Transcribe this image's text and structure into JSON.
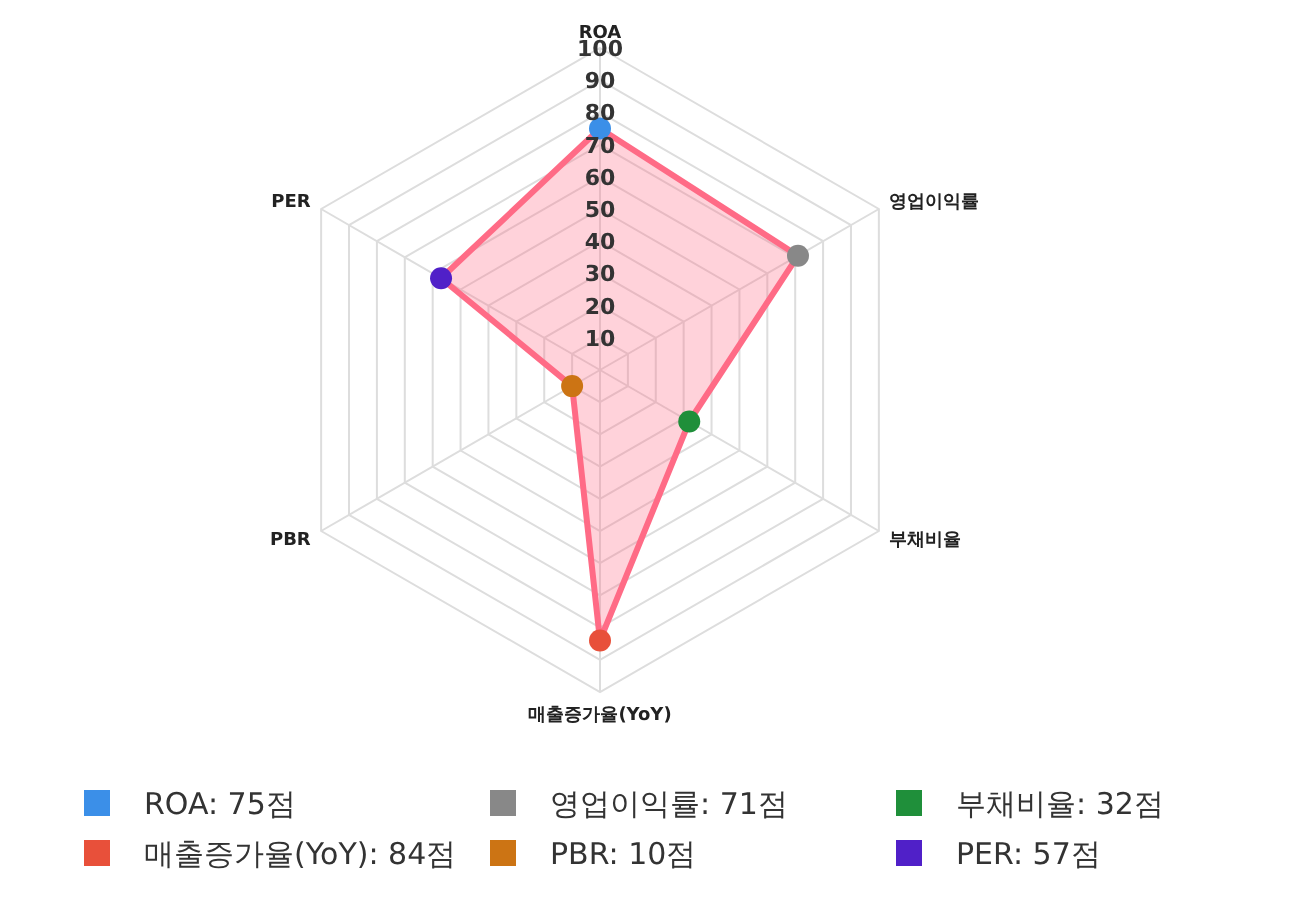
{
  "chart_data": {
    "type": "radar",
    "categories": [
      "ROA",
      "영업이익률",
      "부채비율",
      "매출증가율(YoY)",
      "PBR",
      "PER"
    ],
    "series": [
      {
        "color": "#ff6b86",
        "values": [
          75,
          71,
          32,
          84,
          10,
          57
        ],
        "colors": [
          "#3b8fe8",
          "#888888",
          "#1f8f3a",
          "#e8503a",
          "#cc7414",
          "#5020c8"
        ]
      }
    ],
    "ylim": [
      0,
      100
    ],
    "yticks": [
      10,
      20,
      30,
      40,
      50,
      60,
      70,
      80,
      90,
      100
    ],
    "grid": true,
    "marker": "circle",
    "annotations": [
      "ROA: 75점",
      "영업이익률: 71점",
      "부채비율: 32점",
      "매출증가율(YoY): 84점",
      "PBR: 10점",
      "PER: 57점"
    ]
  }
}
